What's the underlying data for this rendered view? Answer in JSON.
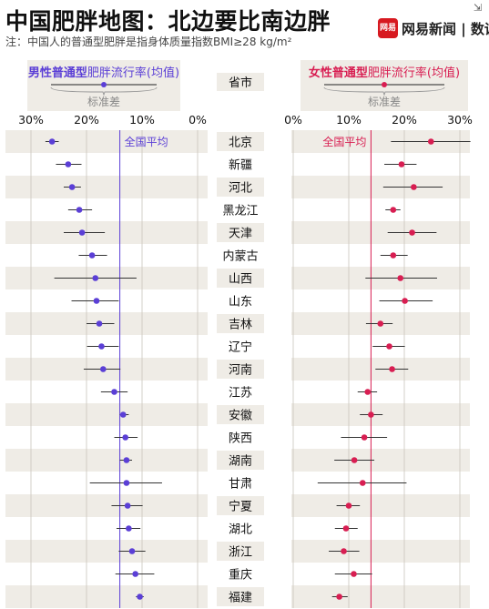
{
  "header": {
    "title": "中国肥胖地图：北边要比南边胖",
    "note": "注：中国人的普通型肥胖是指身体质量指数BMI≥28 kg/m²",
    "brand_logo": "网易",
    "brand_text": "网易新闻 | 数读",
    "corner_icon": "exit-icon"
  },
  "chart_data": {
    "type": "dot-range",
    "column_header": "省市",
    "male": {
      "legend_bold": "男性普通型",
      "legend_rest": "肥胖流行率(均值)",
      "legend_sub": "标准差",
      "avg_label": "全国平均",
      "avg": 14,
      "color": "#5b3fd6",
      "ticks": [
        30,
        20,
        10,
        0
      ],
      "tick_labels": [
        "30%",
        "20%",
        "10%",
        "0%"
      ],
      "xlim": [
        0,
        33
      ],
      "means": [
        26.2,
        23.3,
        22.6,
        21.3,
        20.8,
        19.0,
        18.4,
        18.2,
        17.7,
        17.3,
        17.0,
        15.0,
        13.4,
        13.0,
        12.8,
        12.8,
        12.6,
        12.4,
        11.8,
        11.2,
        10.4
      ],
      "lows": [
        27.4,
        25.5,
        24.1,
        23.3,
        24.1,
        21.4,
        25.8,
        22.7,
        20.0,
        19.9,
        20.5,
        17.4,
        14.0,
        15.0,
        14.0,
        19.4,
        15.5,
        14.6,
        14.2,
        14.8,
        11.1
      ],
      "highs": [
        25.0,
        20.9,
        21.0,
        19.0,
        16.7,
        16.3,
        11.0,
        14.2,
        15.0,
        14.2,
        13.9,
        12.6,
        12.4,
        10.8,
        11.8,
        6.4,
        9.9,
        10.3,
        9.4,
        7.8,
        9.7
      ]
    },
    "female": {
      "legend_bold": "女性普通型",
      "legend_rest": "肥胖流行率(均值)",
      "legend_sub": "标准差",
      "avg_label": "全国平均",
      "avg": 14,
      "color": "#d81e52",
      "ticks": [
        0,
        10,
        20,
        30
      ],
      "tick_labels": [
        "0%",
        "10%",
        "20%",
        "30%"
      ],
      "xlim": [
        0,
        33
      ],
      "means": [
        24.8,
        19.5,
        21.7,
        18.0,
        21.4,
        18.0,
        19.3,
        20.1,
        15.7,
        17.3,
        17.8,
        13.4,
        14.0,
        12.8,
        11.0,
        12.5,
        10.0,
        9.5,
        9.1,
        10.9,
        8.3
      ],
      "lows": [
        17.6,
        16.4,
        16.2,
        16.6,
        17.0,
        15.7,
        13.0,
        15.5,
        13.1,
        14.3,
        14.8,
        11.6,
        12.0,
        8.6,
        7.4,
        4.4,
        7.8,
        7.5,
        6.4,
        7.5,
        7.0
      ],
      "highs": [
        31.9,
        22.2,
        26.9,
        19.3,
        25.8,
        20.6,
        25.9,
        25.1,
        17.9,
        20.1,
        20.7,
        15.1,
        16.1,
        16.9,
        14.6,
        20.4,
        12.0,
        11.6,
        11.9,
        14.2,
        9.8
      ]
    },
    "provinces": [
      "北京",
      "新疆",
      "河北",
      "黑龙江",
      "天津",
      "内蒙古",
      "山西",
      "山东",
      "吉林",
      "辽宁",
      "河南",
      "江苏",
      "安徽",
      "陕西",
      "湖南",
      "甘肃",
      "宁夏",
      "湖北",
      "浙江",
      "重庆",
      "福建"
    ]
  }
}
